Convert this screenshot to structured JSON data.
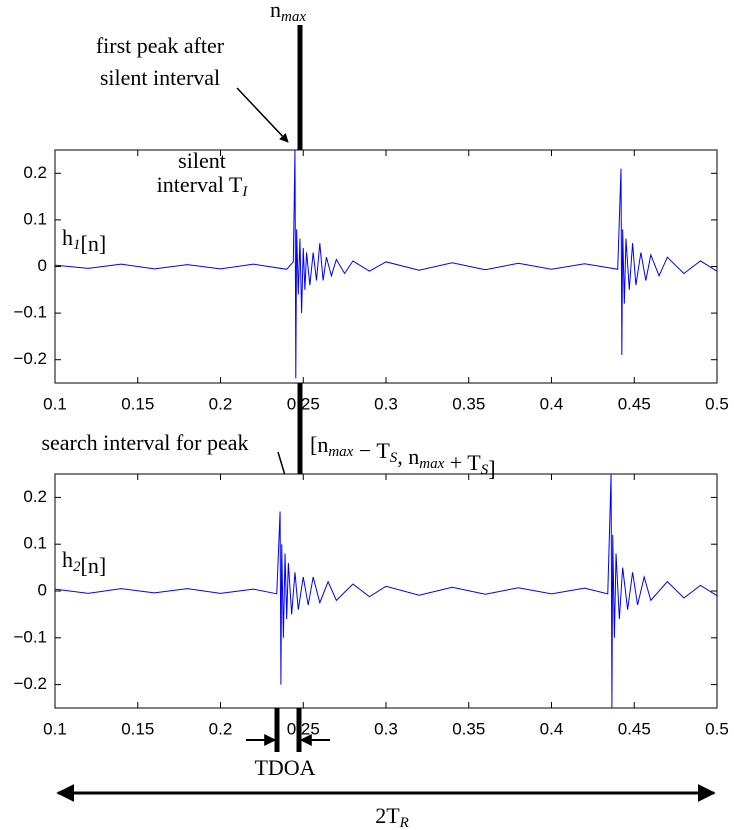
{
  "chart_data": [
    {
      "type": "line",
      "x": [
        0.1,
        0.12,
        0.14,
        0.16,
        0.18,
        0.2,
        0.22,
        0.24,
        0.244,
        0.245,
        0.2455,
        0.246,
        0.247,
        0.248,
        0.249,
        0.25,
        0.251,
        0.252,
        0.254,
        0.256,
        0.258,
        0.26,
        0.262,
        0.264,
        0.267,
        0.27,
        0.275,
        0.28,
        0.29,
        0.3,
        0.32,
        0.34,
        0.36,
        0.38,
        0.4,
        0.42,
        0.44,
        0.442,
        0.4425,
        0.443,
        0.444,
        0.445,
        0.447,
        0.449,
        0.451,
        0.454,
        0.457,
        0.46,
        0.465,
        0.47,
        0.48,
        0.49,
        0.5
      ],
      "series": [
        {
          "color": "#0000ff",
          "values": [
            0.003,
            -0.004,
            0.005,
            -0.005,
            0.004,
            -0.005,
            0.005,
            -0.006,
            0.01,
            0.25,
            -0.24,
            0.08,
            -0.06,
            0.06,
            -0.1,
            0.04,
            -0.05,
            0.03,
            -0.04,
            0.03,
            -0.03,
            0.05,
            -0.03,
            0.02,
            -0.02,
            0.015,
            -0.015,
            0.012,
            -0.01,
            0.01,
            -0.008,
            0.008,
            -0.007,
            0.007,
            -0.006,
            0.006,
            -0.006,
            0.21,
            -0.19,
            0.08,
            -0.08,
            0.06,
            -0.05,
            0.05,
            -0.04,
            0.03,
            -0.03,
            0.025,
            -0.02,
            0.02,
            -0.015,
            0.012,
            -0.01
          ]
        }
      ],
      "xlim": [
        0.1,
        0.5
      ],
      "ylim": [
        -0.25,
        0.25
      ],
      "xticks": [
        0.1,
        0.15,
        0.2,
        0.25,
        0.3,
        0.35,
        0.4,
        0.45,
        0.5
      ],
      "yticks": [
        {
          "value": -0.2,
          "label": "−0.2"
        },
        {
          "value": -0.1,
          "label": "−0.1"
        },
        0,
        0.1,
        0.2
      ]
    },
    {
      "type": "line",
      "x": [
        0.1,
        0.12,
        0.14,
        0.16,
        0.18,
        0.2,
        0.22,
        0.234,
        0.236,
        0.2365,
        0.237,
        0.238,
        0.239,
        0.24,
        0.241,
        0.243,
        0.245,
        0.247,
        0.25,
        0.253,
        0.256,
        0.26,
        0.265,
        0.27,
        0.28,
        0.29,
        0.3,
        0.32,
        0.34,
        0.36,
        0.38,
        0.4,
        0.42,
        0.434,
        0.436,
        0.4365,
        0.437,
        0.438,
        0.439,
        0.441,
        0.443,
        0.446,
        0.449,
        0.452,
        0.456,
        0.46,
        0.47,
        0.48,
        0.49,
        0.5
      ],
      "series": [
        {
          "color": "#0000ff",
          "values": [
            0.004,
            -0.005,
            0.005,
            -0.004,
            0.005,
            -0.005,
            0.004,
            -0.006,
            0.17,
            -0.2,
            0.1,
            -0.1,
            0.08,
            -0.06,
            0.06,
            -0.05,
            0.04,
            -0.04,
            0.03,
            -0.03,
            0.03,
            -0.025,
            0.02,
            -0.02,
            0.015,
            -0.012,
            0.01,
            -0.009,
            0.008,
            -0.007,
            0.007,
            -0.006,
            0.006,
            -0.006,
            0.25,
            -0.25,
            0.12,
            -0.1,
            0.08,
            -0.06,
            0.05,
            -0.04,
            0.04,
            -0.03,
            0.03,
            -0.02,
            0.02,
            -0.015,
            0.012,
            -0.01
          ]
        }
      ],
      "xlim": [
        0.1,
        0.5
      ],
      "ylim": [
        -0.25,
        0.25
      ],
      "xticks": [
        0.1,
        0.15,
        0.2,
        0.25,
        0.3,
        0.35,
        0.4,
        0.45,
        0.5
      ],
      "yticks": [
        {
          "value": -0.2,
          "label": "−0.2"
        },
        {
          "value": -0.1,
          "label": "−0.1"
        },
        0,
        0.1,
        0.2
      ]
    }
  ],
  "annotations": [
    {
      "parts": [
        {
          "text": "n",
          "sub": "max"
        }
      ]
    },
    {
      "parts": [
        {
          "text": "first peak after"
        }
      ]
    },
    {
      "parts": [
        {
          "text": "silent interval"
        }
      ]
    },
    {
      "parts": [
        {
          "text": "silent"
        }
      ]
    },
    {
      "parts": [
        {
          "text": "interval T",
          "sub": "I"
        }
      ]
    },
    {
      "parts": [
        {
          "text": "h",
          "sub": "1"
        },
        {
          "text": "[n]"
        }
      ]
    },
    {
      "parts": [
        {
          "text": "search interval for peak"
        }
      ]
    },
    {
      "parts": [
        {
          "text": "[n",
          "sub": "max"
        },
        {
          "text": " − T",
          "sub": "S"
        },
        {
          "text": ", n",
          "sub": "max"
        },
        {
          "text": " + T",
          "sub": "S"
        },
        {
          "text": "]"
        }
      ]
    },
    {
      "parts": [
        {
          "text": "h",
          "sub": "2"
        },
        {
          "text": "[n]"
        }
      ]
    },
    {
      "parts": [
        {
          "text": "TDOA"
        }
      ]
    },
    {
      "parts": [
        {
          "text": "2T",
          "sub": "R"
        }
      ]
    }
  ]
}
